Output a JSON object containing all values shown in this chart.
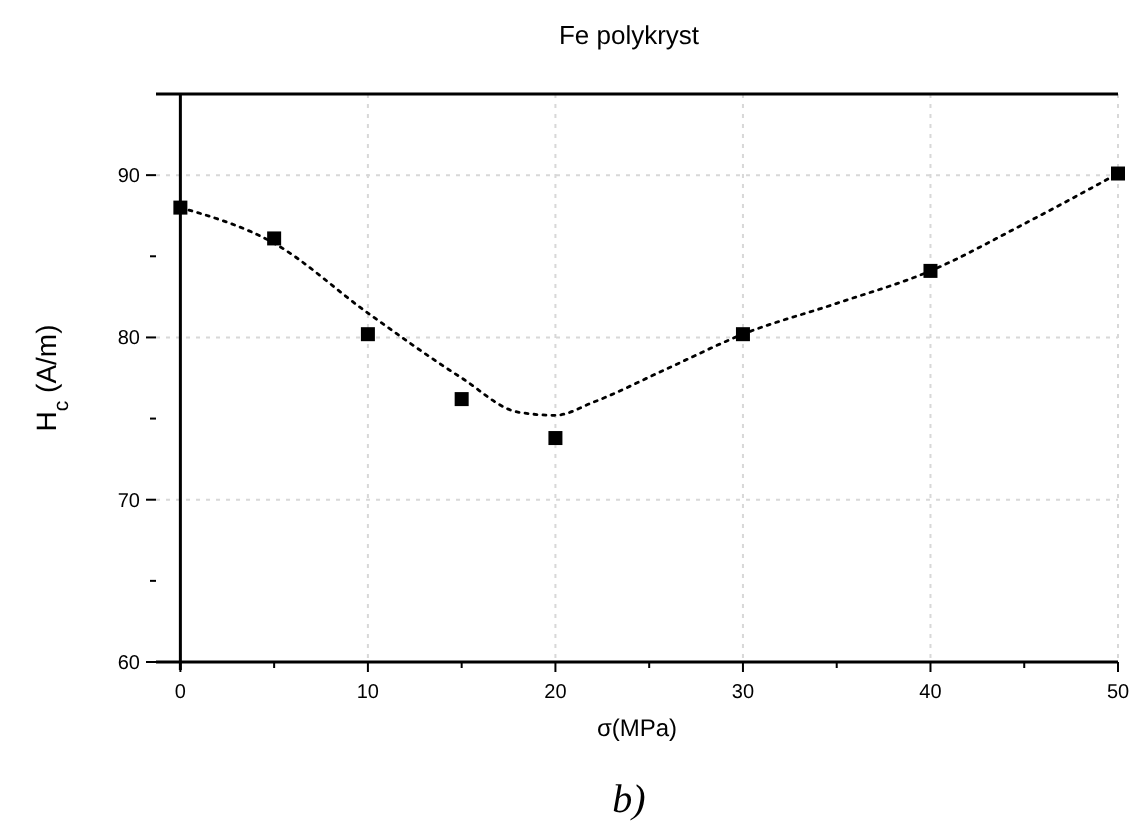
{
  "chart_data": {
    "type": "scatter",
    "title": "Fe polykryst",
    "xlabel": "σ(MPa)",
    "ylabel": "H$_{c}$ (A/m)",
    "xlim": [
      -1.3,
      50
    ],
    "ylim": [
      60,
      95
    ],
    "xticks": [
      0,
      {
        "value": 5,
        "label": null
      },
      10,
      {
        "value": 15,
        "label": null
      },
      20,
      {
        "value": 25,
        "label": null
      },
      30,
      {
        "value": 35,
        "label": null
      },
      40,
      {
        "value": 45,
        "label": null
      },
      50
    ],
    "yticks": [
      60,
      {
        "value": 65,
        "label": null
      },
      70,
      {
        "value": 75,
        "label": null
      },
      80,
      {
        "value": 85,
        "label": null
      },
      90
    ],
    "grid": true,
    "marker": "square",
    "series": [
      {
        "color": "#000000",
        "x": [
          0,
          5,
          10,
          15,
          20,
          30,
          40,
          50
        ],
        "values": [
          88.0,
          86.1,
          80.2,
          76.2,
          73.8,
          80.2,
          84.1,
          90.1
        ]
      },
      {
        "type": "line",
        "color": "#000000",
        "marker": "none",
        "line_style": "dotted",
        "x": [
          0,
          5,
          10,
          15,
          18,
          20,
          22,
          26,
          30,
          35,
          40,
          45,
          50
        ],
        "values": [
          88.0,
          85.8,
          81.5,
          77.5,
          75.4,
          75.2,
          76.0,
          78.1,
          80.2,
          82.1,
          84.1,
          87.0,
          90.1
        ]
      }
    ],
    "annotations": [
      "b)"
    ]
  }
}
